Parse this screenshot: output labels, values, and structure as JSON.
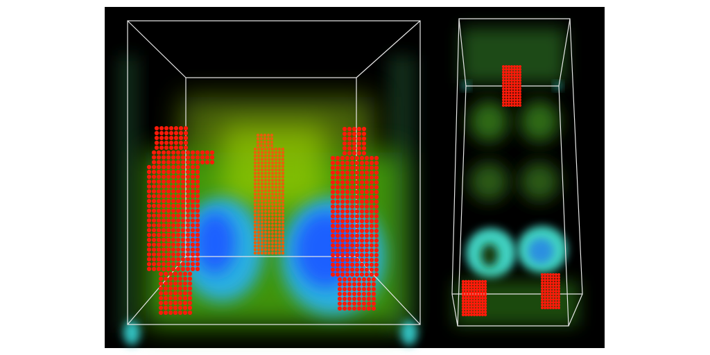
{
  "figure": {
    "panels": [
      "left-volume-view",
      "right-volume-view"
    ],
    "colors": {
      "background": "#000000",
      "wireframe": "#e8e8e8",
      "particles": "#ff1a0a",
      "volume_low": "#2e8b1a",
      "volume_mid": "#7fbf00",
      "volume_high": "#1e7fff",
      "volume_cyan": "#3fd0d0"
    }
  }
}
